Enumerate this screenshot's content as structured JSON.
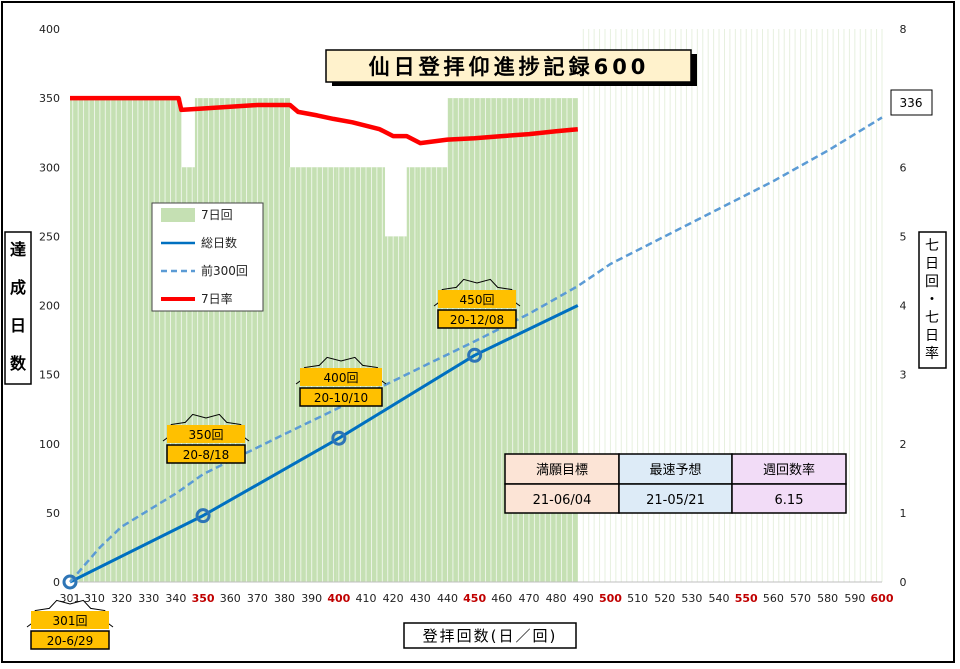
{
  "chart_data": {
    "type": "bar+line",
    "title": "仙日登拝仰進捗記録600",
    "xlabel": "登拝回数(日／回)",
    "ylabel_left": "達成日数",
    "ylabel_right": "七日回・七日率",
    "x_range": [
      301,
      600
    ],
    "x_ticks": [
      "301",
      "310",
      "320",
      "330",
      "340",
      "350",
      "360",
      "370",
      "380",
      "390",
      "400",
      "410",
      "420",
      "430",
      "440",
      "450",
      "460",
      "470",
      "480",
      "490",
      "500",
      "510",
      "520",
      "530",
      "540",
      "550",
      "560",
      "570",
      "580",
      "590",
      "600"
    ],
    "x_ticks_red": [
      "350",
      "400",
      "450",
      "500",
      "550",
      "600"
    ],
    "y_left_range": [
      0,
      400
    ],
    "y_left_ticks": [
      "0",
      "50",
      "100",
      "150",
      "200",
      "250",
      "300",
      "350",
      "400"
    ],
    "y_right_range": [
      0,
      8
    ],
    "y_right_ticks": [
      "0",
      "1",
      "2",
      "3",
      "4",
      "5",
      "6",
      "7",
      "8"
    ],
    "right_end_label": "336",
    "grid": false,
    "legend_position": "left",
    "legend": [
      {
        "name": "7日回",
        "style": "bar",
        "color": "#a9d18e"
      },
      {
        "name": "総日数",
        "style": "solid",
        "color": "#0070c0"
      },
      {
        "name": "前300回",
        "style": "dashed",
        "color": "#5b9bd5"
      },
      {
        "name": "7日率",
        "style": "solid",
        "color": "#ff0000"
      }
    ],
    "series": [
      {
        "name": "7日回",
        "axis": "left",
        "bar_segments": [
          [
            301,
            342,
            350
          ],
          [
            342,
            347,
            300
          ],
          [
            347,
            382,
            350
          ],
          [
            382,
            399,
            300
          ],
          [
            399,
            417,
            300
          ],
          [
            417,
            425,
            250
          ],
          [
            425,
            429,
            300
          ],
          [
            429,
            440,
            300
          ],
          [
            440,
            488,
            350
          ]
        ]
      },
      {
        "name": "総日数",
        "axis": "left",
        "points": [
          [
            301,
            0
          ],
          [
            350,
            48
          ],
          [
            400,
            104
          ],
          [
            450,
            164
          ],
          [
            488,
            200
          ]
        ]
      },
      {
        "name": "前300回",
        "axis": "left",
        "points": [
          [
            301,
            0
          ],
          [
            312,
            25
          ],
          [
            320,
            40
          ],
          [
            340,
            64
          ],
          [
            350,
            78
          ],
          [
            380,
            107
          ],
          [
            400,
            126
          ],
          [
            430,
            155
          ],
          [
            450,
            174
          ],
          [
            470,
            194
          ],
          [
            488,
            214
          ],
          [
            500,
            230
          ],
          [
            520,
            250
          ],
          [
            540,
            270
          ],
          [
            560,
            290
          ],
          [
            580,
            312
          ],
          [
            600,
            336
          ]
        ]
      },
      {
        "name": "7日率",
        "axis": "right",
        "points": [
          [
            301,
            7.0
          ],
          [
            341,
            7.0
          ],
          [
            342,
            6.83
          ],
          [
            350,
            6.85
          ],
          [
            370,
            6.9
          ],
          [
            382,
            6.9
          ],
          [
            385,
            6.8
          ],
          [
            392,
            6.75
          ],
          [
            398,
            6.7
          ],
          [
            405,
            6.65
          ],
          [
            415,
            6.55
          ],
          [
            420,
            6.45
          ],
          [
            425,
            6.45
          ],
          [
            430,
            6.35
          ],
          [
            440,
            6.4
          ],
          [
            450,
            6.42
          ],
          [
            460,
            6.45
          ],
          [
            470,
            6.48
          ],
          [
            480,
            6.52
          ],
          [
            488,
            6.55
          ]
        ]
      }
    ],
    "markers": [
      {
        "label": "301回",
        "date": "20-6/29",
        "x": 301,
        "y": 0
      },
      {
        "label": "350回",
        "date": "20-8/18",
        "x": 350,
        "y": 48
      },
      {
        "label": "400回",
        "date": "20-10/10",
        "x": 400,
        "y": 104
      },
      {
        "label": "450回",
        "date": "20-12/08",
        "x": 450,
        "y": 164
      }
    ],
    "summary_table": {
      "headers": [
        "満願目標",
        "最速予想",
        "週回数率"
      ],
      "values": [
        "21-06/04",
        "21-05/21",
        "6.15"
      ],
      "colors": [
        "#fce4d6",
        "#ddebf7",
        "#f2dcf7"
      ]
    }
  }
}
